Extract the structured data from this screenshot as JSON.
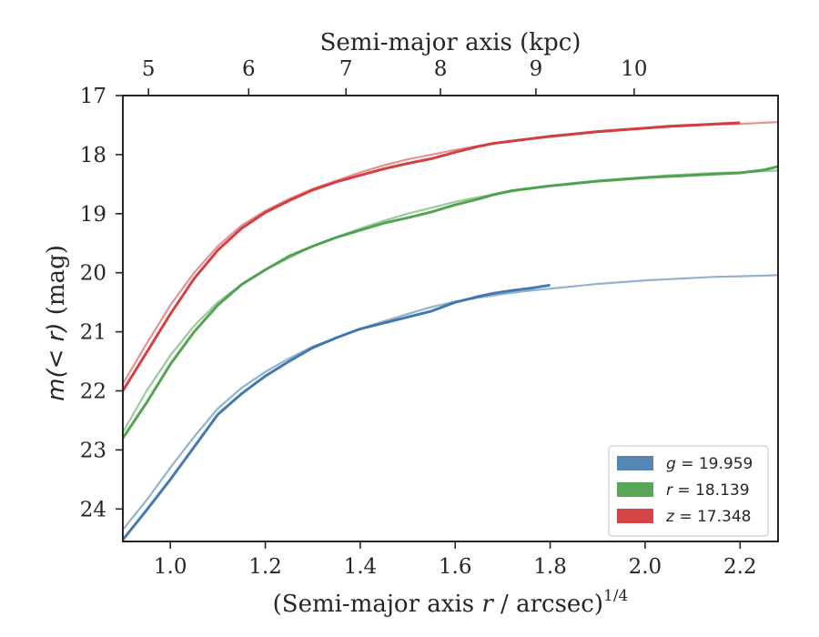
{
  "chart_data": {
    "type": "line",
    "x_axis": {
      "label_prefix": "(Semi-major axis ",
      "label_var": "r",
      "label_suffix": " / arcsec)",
      "label_superscript": "1/4",
      "range": [
        0.9,
        2.28
      ],
      "ticks": [
        1.0,
        1.2,
        1.4,
        1.6,
        1.8,
        2.0,
        2.2
      ],
      "tick_labels": [
        "1.0",
        "1.2",
        "1.4",
        "1.6",
        "1.8",
        "2.0",
        "2.2"
      ]
    },
    "x_top_axis": {
      "label": "Semi-major axis (kpc)",
      "tick_positions_x": [
        0.954,
        1.165,
        1.37,
        1.569,
        1.77,
        1.977
      ],
      "tick_labels": [
        "5",
        "6",
        "7",
        "8",
        "9",
        "10"
      ]
    },
    "y_axis": {
      "label_math": "m(< r)",
      "label_unit": " (mag)",
      "range": [
        17.0,
        24.55
      ],
      "inverted": true,
      "ticks": [
        17,
        18,
        19,
        20,
        21,
        22,
        23,
        24
      ],
      "tick_labels": [
        "17",
        "18",
        "19",
        "20",
        "21",
        "22",
        "23",
        "24"
      ]
    },
    "grid": false,
    "legend": {
      "position": "lower-right",
      "entries": [
        {
          "var": "g",
          "value": "19.959",
          "color": "#4c7fb0"
        },
        {
          "var": "r",
          "value": "18.139",
          "color": "#4fa24f"
        },
        {
          "var": "z",
          "value": "17.348",
          "color": "#d33a3d"
        }
      ]
    },
    "series": [
      {
        "band": "g",
        "color": "#3a72ab",
        "model": {
          "x": [
            0.9,
            0.95,
            1.0,
            1.05,
            1.1,
            1.15,
            1.2,
            1.25,
            1.3,
            1.35,
            1.4,
            1.45,
            1.5,
            1.55,
            1.6,
            1.65,
            1.7,
            1.75,
            1.8,
            1.85,
            1.9,
            1.95,
            2.0,
            2.05,
            2.1,
            2.15,
            2.2,
            2.25,
            2.28
          ],
          "y": [
            24.35,
            23.85,
            23.3,
            22.78,
            22.3,
            21.95,
            21.68,
            21.45,
            21.25,
            21.1,
            20.95,
            20.82,
            20.7,
            20.58,
            20.49,
            20.42,
            20.36,
            20.31,
            20.27,
            20.23,
            20.19,
            20.16,
            20.13,
            20.11,
            20.09,
            20.07,
            20.06,
            20.05,
            20.04
          ]
        },
        "data": {
          "x": [
            0.9,
            0.95,
            1.0,
            1.05,
            1.1,
            1.15,
            1.2,
            1.25,
            1.3,
            1.35,
            1.4,
            1.45,
            1.5,
            1.55,
            1.6,
            1.65,
            1.68,
            1.72,
            1.76,
            1.8
          ],
          "y": [
            24.52,
            24.02,
            23.5,
            22.95,
            22.4,
            22.05,
            21.75,
            21.5,
            21.27,
            21.1,
            20.95,
            20.85,
            20.75,
            20.65,
            20.5,
            20.4,
            20.35,
            20.3,
            20.26,
            20.21
          ]
        }
      },
      {
        "band": "r",
        "color": "#4a9e4a",
        "model": {
          "x": [
            0.9,
            0.95,
            1.0,
            1.05,
            1.1,
            1.15,
            1.2,
            1.25,
            1.3,
            1.35,
            1.4,
            1.45,
            1.5,
            1.55,
            1.6,
            1.65,
            1.7,
            1.75,
            1.8,
            1.85,
            1.9,
            1.95,
            2.0,
            2.05,
            2.1,
            2.15,
            2.2,
            2.25,
            2.28
          ],
          "y": [
            22.7,
            22.0,
            21.4,
            20.9,
            20.5,
            20.2,
            19.95,
            19.75,
            19.55,
            19.4,
            19.25,
            19.12,
            19.0,
            18.9,
            18.8,
            18.72,
            18.65,
            18.58,
            18.53,
            18.48,
            18.44,
            18.41,
            18.38,
            18.35,
            18.33,
            18.31,
            18.3,
            18.28,
            18.27
          ]
        },
        "data": {
          "x": [
            0.9,
            0.95,
            1.0,
            1.05,
            1.1,
            1.15,
            1.2,
            1.25,
            1.3,
            1.35,
            1.4,
            1.45,
            1.5,
            1.55,
            1.6,
            1.65,
            1.68,
            1.72,
            1.76,
            1.8,
            1.85,
            1.9,
            1.95,
            2.0,
            2.05,
            2.1,
            2.15,
            2.2,
            2.25,
            2.28
          ],
          "y": [
            22.8,
            22.2,
            21.55,
            21.0,
            20.55,
            20.2,
            19.95,
            19.72,
            19.55,
            19.4,
            19.28,
            19.16,
            19.07,
            18.97,
            18.85,
            18.75,
            18.68,
            18.61,
            18.57,
            18.53,
            18.49,
            18.45,
            18.42,
            18.39,
            18.37,
            18.35,
            18.33,
            18.31,
            18.26,
            18.2
          ]
        }
      },
      {
        "band": "z",
        "color": "#d1373a",
        "model": {
          "x": [
            0.9,
            0.95,
            1.0,
            1.05,
            1.1,
            1.15,
            1.2,
            1.25,
            1.3,
            1.35,
            1.4,
            1.45,
            1.5,
            1.55,
            1.6,
            1.65,
            1.7,
            1.75,
            1.8,
            1.85,
            1.9,
            1.95,
            2.0,
            2.05,
            2.1,
            2.15,
            2.2,
            2.25,
            2.28
          ],
          "y": [
            21.88,
            21.2,
            20.55,
            20.0,
            19.55,
            19.2,
            18.95,
            18.75,
            18.58,
            18.44,
            18.3,
            18.18,
            18.08,
            18.0,
            17.92,
            17.85,
            17.79,
            17.74,
            17.7,
            17.66,
            17.62,
            17.59,
            17.56,
            17.53,
            17.51,
            17.49,
            17.48,
            17.46,
            17.45
          ]
        },
        "data": {
          "x": [
            0.9,
            0.95,
            1.0,
            1.05,
            1.1,
            1.15,
            1.2,
            1.25,
            1.3,
            1.35,
            1.4,
            1.45,
            1.5,
            1.55,
            1.6,
            1.65,
            1.68,
            1.72,
            1.76,
            1.8,
            1.85,
            1.9,
            1.95,
            2.0,
            2.05,
            2.1,
            2.15,
            2.2
          ],
          "y": [
            22.0,
            21.35,
            20.7,
            20.1,
            19.62,
            19.25,
            18.98,
            18.78,
            18.6,
            18.46,
            18.35,
            18.24,
            18.15,
            18.07,
            17.96,
            17.86,
            17.81,
            17.77,
            17.73,
            17.69,
            17.65,
            17.61,
            17.58,
            17.55,
            17.52,
            17.5,
            17.48,
            17.46
          ]
        }
      }
    ]
  }
}
